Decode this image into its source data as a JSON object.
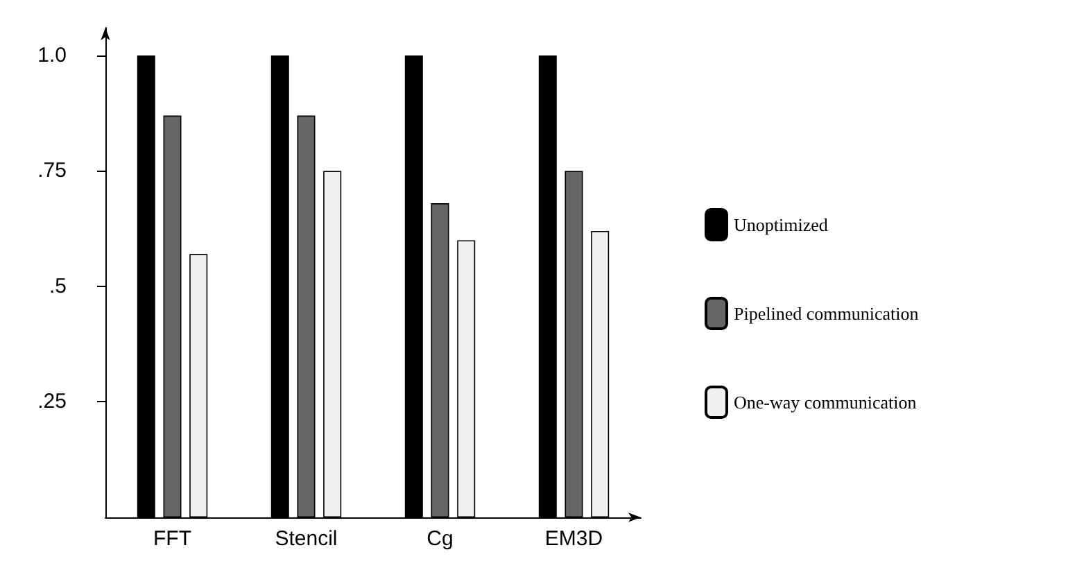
{
  "chart_data": {
    "type": "bar",
    "categories": [
      "FFT",
      "Stencil",
      "Cg",
      "EM3D"
    ],
    "series": [
      {
        "name": "Unoptimized",
        "color": "#000000",
        "values": [
          1.0,
          1.0,
          1.0,
          1.0
        ]
      },
      {
        "name": "Pipelined communication",
        "color": "#666666",
        "values": [
          0.87,
          0.87,
          0.68,
          0.75
        ]
      },
      {
        "name": "One-way communication",
        "color": "#f0f0f0",
        "values": [
          0.57,
          0.75,
          0.6,
          0.62
        ]
      }
    ],
    "ylim": [
      0,
      1.06
    ],
    "yticks": [
      {
        "value": 0.25,
        "label": ".25"
      },
      {
        "value": 0.5,
        "label": ".5"
      },
      {
        "value": 0.75,
        "label": ".75"
      },
      {
        "value": 1.0,
        "label": "1.0"
      }
    ],
    "grid": false,
    "legend": "right"
  }
}
